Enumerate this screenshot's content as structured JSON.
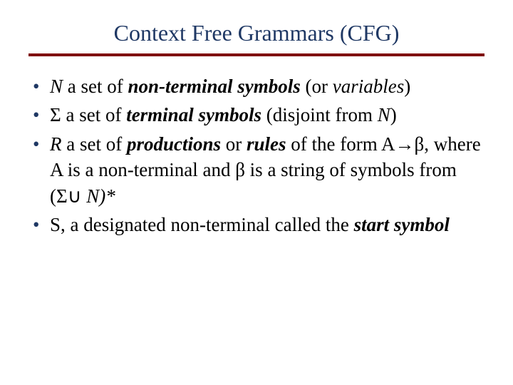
{
  "title": {
    "text": "Context Free Grammars (CFG)",
    "color": "#1f3864",
    "fontsize": 32
  },
  "rule": {
    "color": "#7f0000",
    "height": 4
  },
  "bullet_color": "#1f3864",
  "text_color": "#000000",
  "fontsize_body": 27,
  "bullets": [
    {
      "parts": [
        {
          "text": "N",
          "style": "italic"
        },
        {
          "text": " a set of ",
          "style": "normal"
        },
        {
          "text": "non-terminal symbols",
          "style": "bolditalic"
        },
        {
          "text": " (or ",
          "style": "normal"
        },
        {
          "text": "variables",
          "style": "italic"
        },
        {
          "text": ")",
          "style": "normal"
        }
      ]
    },
    {
      "parts": [
        {
          "text": "Σ a set of ",
          "style": "normal"
        },
        {
          "text": "terminal symbols",
          "style": "bolditalic"
        },
        {
          "text": " (disjoint from ",
          "style": "normal"
        },
        {
          "text": "N",
          "style": "italic"
        },
        {
          "text": ")",
          "style": "normal"
        }
      ]
    },
    {
      "parts": [
        {
          "text": "R",
          "style": "italic"
        },
        {
          "text": " a set of ",
          "style": "normal"
        },
        {
          "text": "productions",
          "style": "bolditalic"
        },
        {
          "text": " or ",
          "style": "normal"
        },
        {
          "text": "rules",
          "style": "bolditalic"
        },
        {
          "text": " of the form A→β, where A is a non-terminal and β is a string of symbols from (Σ∪ ",
          "style": "normal"
        },
        {
          "text": "N)*",
          "style": "italic"
        }
      ]
    },
    {
      "parts": [
        {
          "text": "S, a designated non-terminal called the ",
          "style": "normal"
        },
        {
          "text": "start symbol",
          "style": "bolditalic"
        }
      ]
    }
  ]
}
